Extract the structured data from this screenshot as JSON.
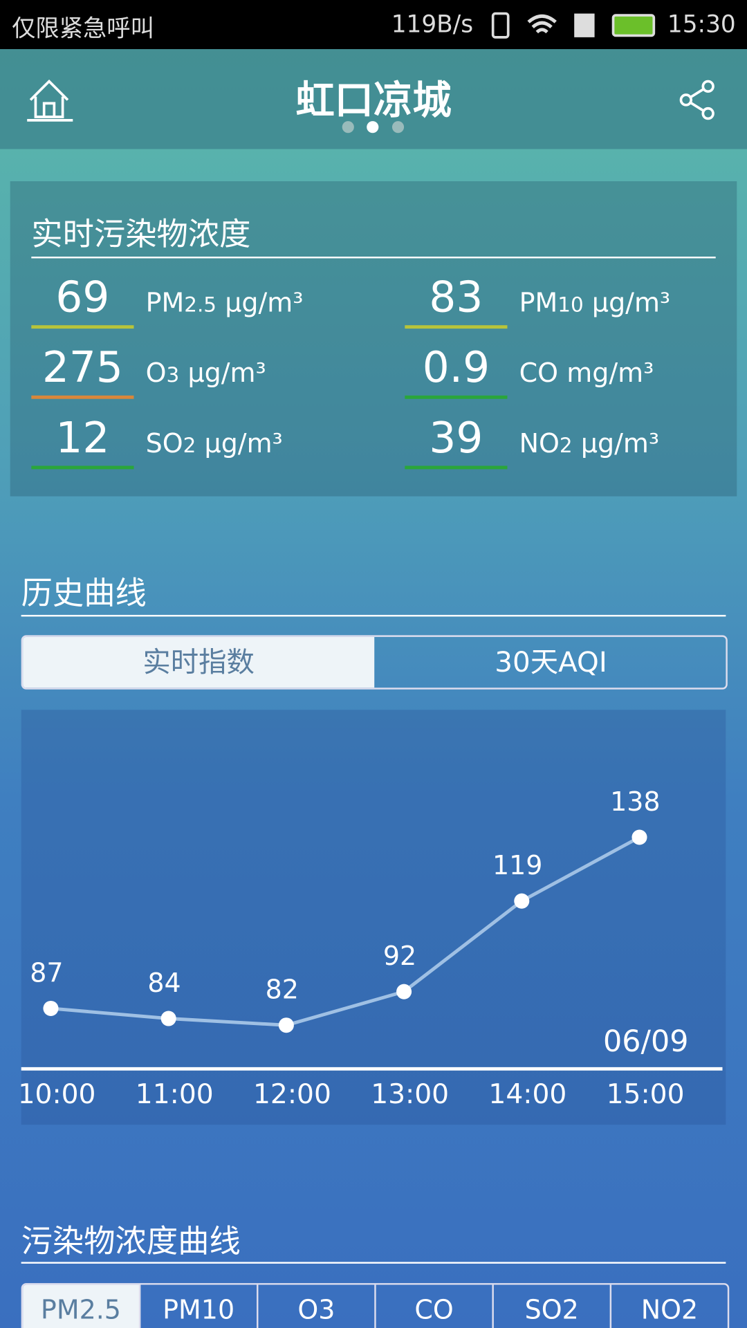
{
  "status_bar": {
    "carrier": "仅限紧急呼叫",
    "speed": "119B/s",
    "time": "15:30"
  },
  "header": {
    "title": "虹口凉城"
  },
  "pollutants": {
    "title": "实时污染物浓度",
    "items": [
      {
        "value": 69,
        "name": "PM",
        "sub": "2.5",
        "unit": "μg/m³",
        "color": "#b8c43a"
      },
      {
        "value": 83,
        "name": "PM",
        "sub": "10",
        "unit": "μg/m³",
        "color": "#b8c43a"
      },
      {
        "value": 275,
        "name": "O",
        "sub": "3",
        "unit": "μg/m³",
        "color": "#d9873a"
      },
      {
        "value": 0.9,
        "name": "CO",
        "sub": "",
        "unit": "mg/m³",
        "color": "#2aa63a"
      },
      {
        "value": 12,
        "name": "SO",
        "sub": "2",
        "unit": "μg/m³",
        "color": "#2aa63a"
      },
      {
        "value": 39,
        "name": "NO",
        "sub": "2",
        "unit": "μg/m³",
        "color": "#2aa63a"
      }
    ]
  },
  "history": {
    "title": "历史曲线",
    "tabs": [
      "实时指数",
      "30天AQI"
    ]
  },
  "chart_data": {
    "type": "line",
    "categories": [
      "10:00",
      "11:00",
      "12:00",
      "13:00",
      "14:00",
      "15:00"
    ],
    "values": [
      87,
      84,
      82,
      92,
      119,
      138
    ],
    "annotation": "06/09",
    "ylim": [
      69,
      176
    ],
    "color": "#9fc0e4"
  },
  "pollutant_curve": {
    "title": "污染物浓度曲线",
    "tabs": [
      "PM2.5",
      "PM10",
      "O3",
      "CO",
      "SO2",
      "NO2"
    ]
  }
}
